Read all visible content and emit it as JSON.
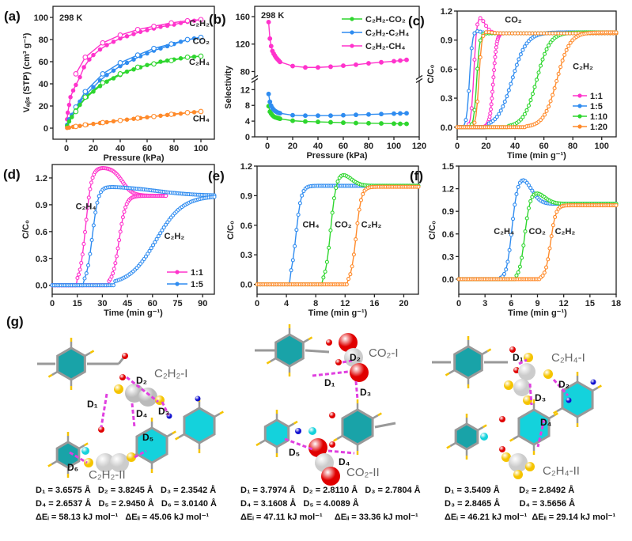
{
  "colors": {
    "magenta": "#ff33cc",
    "blue": "#2f8cf0",
    "green": "#2ed62e",
    "orange": "#ff8a2a",
    "cyan": "#14d2dc",
    "teal": "#19a3a8",
    "red": "#e00000",
    "yellow": "#f5c400",
    "navy": "#1010d0",
    "gray": "#9a9a9a",
    "pink": "#e040e0"
  },
  "chart_data": [
    {
      "id": "a",
      "panel_label": "(a)",
      "type": "line",
      "title": "",
      "annotation": "298 K",
      "xlabel": "Pressure (kPa)",
      "ylabel": "V_abs (STP) (cm3 g-1)",
      "xlim": [
        -10,
        110
      ],
      "ylim": [
        -10,
        110
      ],
      "xticks": [
        0,
        20,
        40,
        60,
        80,
        100
      ],
      "yticks": [
        0,
        20,
        40,
        60,
        80,
        100
      ],
      "series": [
        {
          "name": "C2H2",
          "label": "C₂H₂",
          "color": "#ff33cc",
          "x": [
            0.5,
            1,
            2,
            3,
            5,
            7,
            10,
            13,
            17,
            20,
            25,
            30,
            35,
            40,
            45,
            50,
            55,
            60,
            65,
            70,
            75,
            80,
            85,
            90,
            95,
            100
          ],
          "y": [
            8,
            14,
            21,
            28,
            34,
            39,
            46,
            55,
            62,
            66,
            71,
            75,
            78,
            81,
            83,
            85,
            87,
            88.5,
            90,
            91.5,
            92.5,
            93.5,
            95,
            96,
            97,
            98
          ],
          "desorption_x": [
            100,
            90,
            78,
            65,
            53,
            40,
            27,
            14,
            7
          ],
          "desorption_y": [
            98,
            97,
            95,
            92,
            89,
            84,
            77,
            64,
            49
          ]
        },
        {
          "name": "CO2",
          "label": "CO₂",
          "color": "#2f8cf0",
          "x": [
            0.5,
            2,
            4,
            7,
            10,
            15,
            20,
            25,
            30,
            35,
            40,
            45,
            50,
            55,
            60,
            65,
            70,
            75,
            80,
            85,
            90,
            95,
            100
          ],
          "y": [
            3,
            8,
            12,
            19,
            24,
            31,
            37,
            43,
            48,
            52,
            56,
            59,
            62,
            65,
            67.5,
            70,
            72,
            74,
            76,
            78,
            79.5,
            81,
            82
          ],
          "desorption_x": [
            100,
            90,
            78,
            65,
            53,
            40,
            27,
            14,
            7
          ],
          "desorption_y": [
            82,
            80,
            76,
            72,
            66,
            59,
            49,
            33,
            19
          ]
        },
        {
          "name": "C2H4",
          "label": "C₂H₄",
          "color": "#2ed62e",
          "x": [
            0.5,
            2,
            4,
            7,
            10,
            15,
            20,
            25,
            30,
            35,
            40,
            45,
            50,
            55,
            60,
            65,
            70,
            75,
            80,
            85,
            90,
            95,
            100
          ],
          "y": [
            2,
            6,
            10,
            16,
            21,
            28,
            33,
            38,
            42,
            45,
            48,
            51,
            53,
            55,
            57,
            58.5,
            60,
            61,
            62,
            63,
            64,
            64.5,
            65
          ],
          "desorption_x": [
            100,
            90,
            78,
            65,
            53,
            40,
            27,
            14,
            7
          ],
          "desorption_y": [
            65,
            64,
            61,
            58,
            55,
            49,
            41,
            28,
            15
          ]
        },
        {
          "name": "CH4",
          "label": "CH₄",
          "color": "#ff8a2a",
          "x": [
            0.5,
            2,
            5,
            10,
            15,
            20,
            25,
            30,
            35,
            40,
            45,
            50,
            55,
            60,
            65,
            70,
            75,
            80,
            85,
            90,
            95,
            100
          ],
          "y": [
            0.2,
            0.5,
            1.2,
            2,
            3,
            3.8,
            4.6,
            5.4,
            6.2,
            7,
            7.7,
            8.4,
            9.1,
            9.8,
            10.5,
            11.2,
            11.9,
            12.5,
            13.1,
            13.8,
            14.4,
            15
          ],
          "desorption_x": [
            100,
            90,
            78,
            65,
            53,
            40,
            27,
            14,
            7
          ],
          "desorption_y": [
            15,
            14,
            12.5,
            10.5,
            9,
            7,
            5,
            3,
            1.5
          ]
        }
      ]
    },
    {
      "id": "b",
      "panel_label": "(b)",
      "type": "line",
      "annotation": "298 K",
      "xlabel": "Pressure (kPa)",
      "ylabel": "Selectivity",
      "xlim": [
        -10,
        120
      ],
      "xticks": [
        0,
        20,
        40,
        60,
        80,
        100,
        120
      ],
      "ylim_lower": [
        0,
        14
      ],
      "ylim_upper": [
        72,
        175
      ],
      "yticks_lower": [
        0,
        4,
        8,
        12
      ],
      "yticks_upper": [
        80,
        120,
        160
      ],
      "axis_break": true,
      "legend_position": "top-right",
      "series": [
        {
          "name": "C2H2-CO2",
          "label": "C₂H₂-CO₂",
          "color": "#2ed62e",
          "x": [
            1,
            2,
            3,
            4,
            5,
            6,
            7,
            8,
            9,
            10,
            20,
            30,
            40,
            50,
            60,
            70,
            80,
            90,
            100,
            105,
            110
          ],
          "y": [
            7.8,
            6.4,
            5.9,
            5.5,
            5.2,
            5.0,
            4.9,
            4.8,
            4.7,
            4.6,
            4.1,
            3.9,
            3.8,
            3.7,
            3.6,
            3.5,
            3.45,
            3.4,
            3.35,
            3.3,
            3.3
          ]
        },
        {
          "name": "C2H2-C2H4",
          "label": "C₂H₂-C₂H₄",
          "color": "#2f8cf0",
          "x": [
            1,
            2,
            3,
            4,
            5,
            6,
            7,
            8,
            9,
            10,
            20,
            30,
            40,
            50,
            60,
            70,
            80,
            90,
            100,
            105,
            110
          ],
          "y": [
            10.9,
            8.9,
            7.9,
            7.3,
            6.9,
            6.6,
            6.4,
            6.2,
            6.1,
            6.0,
            5.5,
            5.4,
            5.4,
            5.4,
            5.5,
            5.6,
            5.7,
            5.8,
            5.9,
            5.95,
            6.0
          ]
        },
        {
          "name": "C2H2-CH4",
          "label": "C₂H₂-CH₄",
          "color": "#ff33cc",
          "x": [
            1,
            2,
            3,
            4,
            5,
            6,
            7,
            8,
            9,
            10,
            20,
            30,
            40,
            50,
            60,
            70,
            80,
            90,
            100,
            105,
            110
          ],
          "y": [
            152,
            128,
            117,
            110,
            106,
            103,
            100,
            98,
            96,
            94,
            88,
            86,
            86,
            87,
            88.5,
            90,
            92,
            93.5,
            95,
            96,
            97
          ]
        }
      ]
    },
    {
      "id": "c",
      "panel_label": "(c)",
      "type": "line",
      "xlabel": "Time (min g⁻¹)",
      "ylabel": "C/C₀",
      "xlim": [
        0,
        110
      ],
      "ylim": [
        -0.1,
        1.2
      ],
      "xticks": [
        0,
        20,
        40,
        60,
        80,
        100
      ],
      "yticks": [
        0.0,
        0.3,
        0.6,
        0.9,
        1.2
      ],
      "annotations": [
        {
          "text": "CO₂",
          "x": 33,
          "y": 1.08
        },
        {
          "text": "C₂H₂",
          "x": 80,
          "y": 0.6
        }
      ],
      "legend_position": "bottom-right",
      "series": [
        {
          "name": "1:1",
          "color": "#ff33cc",
          "co2_breakthrough": 9,
          "co2_peak": 1.15,
          "c2h2_breakthrough": 22,
          "c2h2_mid": 25
        },
        {
          "name": "1:5",
          "color": "#2f8cf0",
          "co2_breakthrough": 6,
          "co2_peak": 1.0,
          "c2h2_breakthrough": 25,
          "c2h2_mid": 38
        },
        {
          "name": "1:10",
          "color": "#2ed62e",
          "co2_breakthrough": 11,
          "co2_peak": 0.97,
          "c2h2_breakthrough": 38,
          "c2h2_mid": 55
        },
        {
          "name": "1:20",
          "color": "#ff8a2a",
          "co2_breakthrough": 12.5,
          "co2_peak": 0.99,
          "c2h2_breakthrough": 50,
          "c2h2_mid": 69
        }
      ]
    },
    {
      "id": "d",
      "panel_label": "(d)",
      "type": "line",
      "xlabel": "Time (min g⁻¹)",
      "ylabel": "C/C₀",
      "xlim": [
        0,
        97
      ],
      "ylim": [
        -0.1,
        1.35
      ],
      "xticks": [
        0,
        15,
        30,
        45,
        60,
        75,
        90
      ],
      "yticks": [
        0.0,
        0.3,
        0.6,
        0.9,
        1.2
      ],
      "annotations": [
        {
          "text": "C₂H₄",
          "x": 14,
          "y": 0.85
        },
        {
          "text": "C₂H₂",
          "x": 67,
          "y": 0.52
        }
      ],
      "legend_position": "bottom-right",
      "series": [
        {
          "name": "1:1",
          "color": "#ff33cc",
          "c2h4_breakthrough": 15,
          "c2h4_peak": 1.32,
          "c2h2_breakthrough": 37,
          "c2h2_mid": 40,
          "end": 68
        },
        {
          "name": "1:5",
          "color": "#2f8cf0",
          "c2h4_breakthrough": 19,
          "c2h4_peak": 1.11,
          "c2h2_breakthrough": 40,
          "c2h2_mid": 62,
          "end": 97
        }
      ]
    },
    {
      "id": "e",
      "panel_label": "(e)",
      "type": "line",
      "xlabel": "Time (min g⁻¹)",
      "ylabel": "C/C₀",
      "xlim": [
        0,
        22
      ],
      "ylim": [
        -0.1,
        1.2
      ],
      "xticks": [
        0,
        4,
        8,
        12,
        16,
        20
      ],
      "yticks": [
        0.0,
        0.3,
        0.6,
        0.9,
        1.2
      ],
      "series": [
        {
          "name": "CH4",
          "label": "CH₄",
          "color": "#2f8cf0",
          "breakthrough": 4.5,
          "mid": 5.3,
          "peak": 1.0
        },
        {
          "name": "CO2",
          "label": "CO₂",
          "color": "#2ed62e",
          "breakthrough": 9,
          "mid": 10,
          "peak": 1.12
        },
        {
          "name": "C2H2",
          "label": "C₂H₂",
          "color": "#ff8a2a",
          "breakthrough": 12.3,
          "mid": 13.5,
          "peak": 0.99
        }
      ]
    },
    {
      "id": "f",
      "panel_label": "(f)",
      "type": "line",
      "xlabel": "Time (min g⁻¹)",
      "ylabel": "C/C₀",
      "xlim": [
        0,
        18
      ],
      "ylim": [
        -0.2,
        1.5
      ],
      "xticks": [
        0,
        3,
        6,
        9,
        12,
        15,
        18
      ],
      "yticks": [
        0.0,
        0.3,
        0.6,
        0.9,
        1.2,
        1.5
      ],
      "series": [
        {
          "name": "C2H4",
          "label": "C₂H₄",
          "color": "#2f8cf0",
          "breakthrough": 4.8,
          "mid": 6,
          "peak": 1.33
        },
        {
          "name": "CO2",
          "label": "CO₂",
          "color": "#2ed62e",
          "breakthrough": 6.6,
          "mid": 7.5,
          "peak": 1.15
        },
        {
          "name": "C2H2",
          "label": "C₂H₂",
          "color": "#ff8a2a",
          "breakthrough": 9.3,
          "mid": 10.5,
          "peak": 0.98
        }
      ]
    }
  ],
  "panel_g": {
    "label": "(g)",
    "structures": [
      {
        "title_top": "C₂H₂-I",
        "title_bottom": "C₂H₂-II",
        "distance_labels": [
          "D₁",
          "D₂",
          "D₃",
          "D₄",
          "D₅",
          "D₆"
        ],
        "info_lines": [
          "D₁ = 3.6575 Å   D₂ = 3.8245 Å   D₃ = 2.3542 Å",
          "D₄ = 2.6537 Å   D₅ = 2.9450 Å   D₆ = 3.0140 Å",
          "ΔEᵢ = 58.13 kJ mol⁻¹   ΔEᵢᵢ = 45.06 kJ mol⁻¹"
        ]
      },
      {
        "title_top": "CO₂-I",
        "title_bottom": "CO₂-II",
        "distance_labels": [
          "D₁",
          "D₂",
          "D₃",
          "D₄",
          "D₅"
        ],
        "info_lines": [
          "D₁ = 3.7974 Å   D₂ = 2.8110 Å   D₃ = 2.7804 Å",
          "D₄ = 3.1608 Å   D₅ = 4.0089 Å",
          "ΔEᵢ = 47.11 kJ mol⁻¹     ΔEᵢᵢ = 33.36 kJ mol⁻¹"
        ]
      },
      {
        "title_top": "C₂H₄-I",
        "title_bottom": "C₂H₄-II",
        "distance_labels": [
          "D₁",
          "D₂",
          "D₃",
          "D₄"
        ],
        "info_lines": [
          "D₁ = 3.5409 Å        D₂ = 2.8492 Å",
          "D₃ = 2.8465 Å        D₄ = 3.5656 Å",
          "ΔEᵢ = 46.21 kJ mol⁻¹  ΔEᵢᵢ = 29.14 kJ mol⁻¹"
        ]
      }
    ]
  }
}
